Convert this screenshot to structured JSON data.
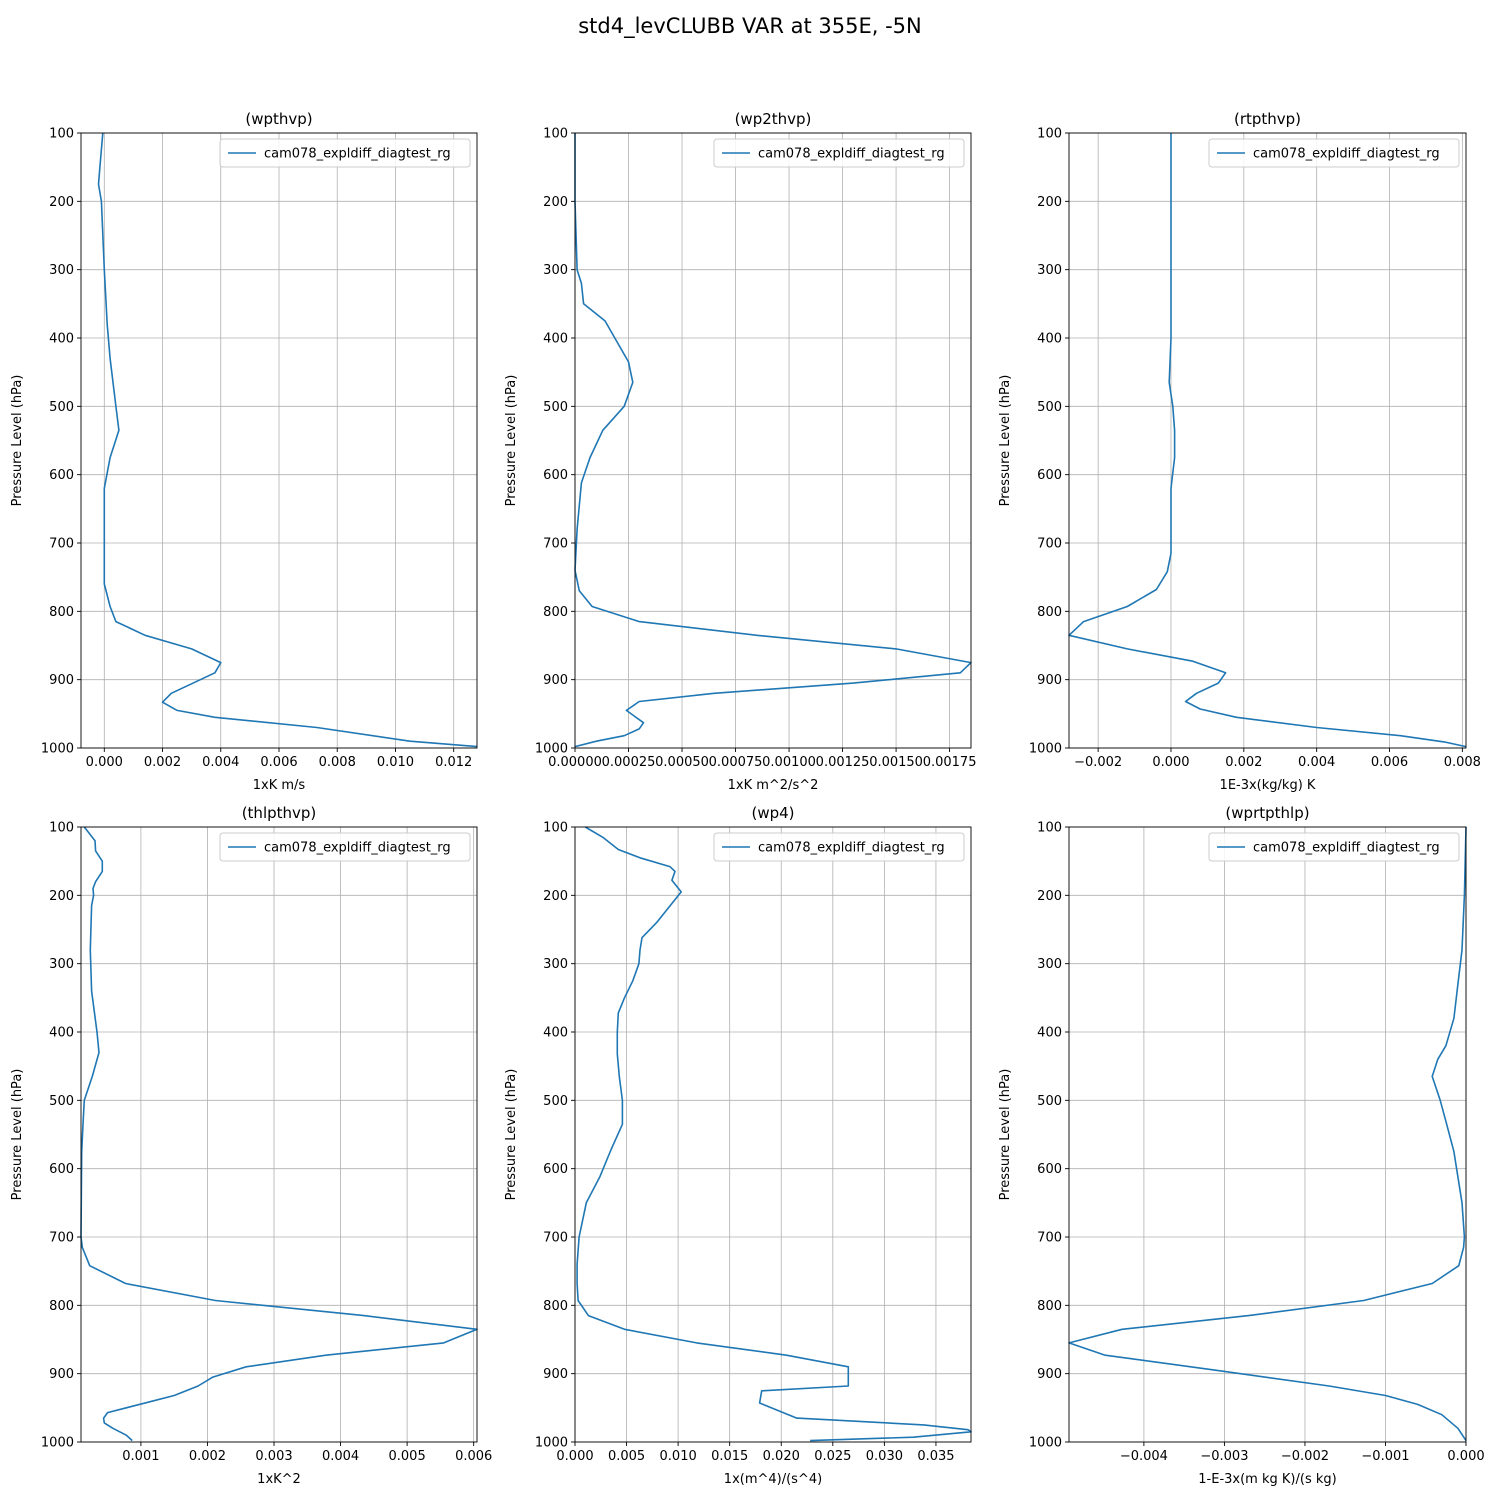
{
  "suptitle": "std4_levCLUBB VAR at 355E, -5N",
  "colors": {
    "series": "#1f77b4",
    "grid": "#b0b0b0",
    "axes": "#000000"
  },
  "chart_data": [
    {
      "type": "line",
      "title": "(wpthvp)",
      "xlabel": "1xK m/s",
      "ylabel": "Pressure Level (hPa)",
      "xlim": [
        -0.0008,
        0.0128
      ],
      "ylim": [
        1000,
        100
      ],
      "y_inverted": true,
      "grid": true,
      "legend": "upper right",
      "xticks": [
        0,
        0.002,
        0.004,
        0.006,
        0.008,
        0.01,
        0.012
      ],
      "xticklabels": [
        "0.000",
        "0.002",
        "0.004",
        "0.006",
        "0.008",
        "0.010",
        "0.012"
      ],
      "yticks": [
        100,
        200,
        300,
        400,
        500,
        600,
        700,
        800,
        900,
        1000
      ],
      "series": [
        {
          "name": "cam078_expldiff_diagtest_rg",
          "x": [
            -5e-05,
            -0.00015,
            -0.0002,
            -0.0001,
            0.0,
            0.0001,
            0.0002,
            0.0003,
            0.0004,
            0.0005,
            0.0002,
            0.0,
            0.0,
            0.0,
            0.0002,
            0.0004,
            0.0014,
            0.003,
            0.004,
            0.0038,
            0.0023,
            0.002,
            0.0025,
            0.0038,
            0.0073,
            0.0105,
            0.0128
          ],
          "y": [
            100,
            150,
            175,
            200,
            300,
            380,
            430,
            465,
            500,
            535,
            575,
            620,
            700,
            760,
            793,
            815,
            835,
            855,
            875,
            890,
            920,
            933,
            945,
            955,
            970,
            990,
            998
          ]
        }
      ]
    },
    {
      "type": "line",
      "title": "(wp2thvp)",
      "xlabel": "1xK m^2/s^2",
      "ylabel": "Pressure Level (hPa)",
      "xlim": [
        0,
        0.00185
      ],
      "ylim": [
        1000,
        100
      ],
      "y_inverted": true,
      "grid": true,
      "legend": "upper right",
      "xticks": [
        0,
        0.00025,
        0.0005,
        0.00075,
        0.001,
        0.00125,
        0.0015,
        0.00175
      ],
      "xticklabels": [
        "0.00000",
        "0.00025",
        "0.00050",
        "0.00075",
        "0.00100",
        "0.00125",
        "0.00150",
        "0.00175"
      ],
      "yticks": [
        100,
        200,
        300,
        400,
        500,
        600,
        700,
        800,
        900,
        1000
      ],
      "series": [
        {
          "name": "cam078_expldiff_diagtest_rg",
          "x": [
            0.0,
            0.0,
            1e-05,
            3e-05,
            4e-05,
            0.00014,
            0.00025,
            0.00027,
            0.00023,
            0.00013,
            7e-05,
            3e-05,
            1e-05,
            0.0,
            2e-05,
            8e-05,
            0.0003,
            0.00085,
            0.0015,
            0.00185,
            0.0018,
            0.0013,
            0.00065,
            0.0003,
            0.00024,
            0.00032,
            0.0003,
            0.00023,
            0.0001,
            0.0
          ],
          "y": [
            100,
            200,
            300,
            320,
            350,
            375,
            435,
            465,
            500,
            535,
            575,
            612,
            680,
            740,
            770,
            793,
            815,
            835,
            855,
            875,
            890,
            905,
            920,
            932,
            945,
            963,
            972,
            982,
            990,
            998
          ]
        }
      ]
    },
    {
      "type": "line",
      "title": "(rtpthvp)",
      "xlabel": "1E-3x(kg/kg) K",
      "ylabel": "Pressure Level (hPa)",
      "xlim": [
        -0.0028,
        0.0081
      ],
      "ylim": [
        1000,
        100
      ],
      "y_inverted": true,
      "grid": true,
      "legend": "upper right",
      "xticks": [
        -0.002,
        0,
        0.002,
        0.004,
        0.006,
        0.008
      ],
      "xticklabels": [
        "−0.002",
        "0.000",
        "0.002",
        "0.004",
        "0.006",
        "0.008"
      ],
      "yticks": [
        100,
        200,
        300,
        400,
        500,
        600,
        700,
        800,
        900,
        1000
      ],
      "series": [
        {
          "name": "cam078_expldiff_diagtest_rg",
          "x": [
            0.0,
            0.0,
            0.0,
            0.0,
            -5e-05,
            5e-05,
            0.0001,
            0.0001,
            0.0,
            0.0,
            -0.0001,
            -0.0004,
            -0.0012,
            -0.0024,
            -0.0028,
            -0.0012,
            0.0006,
            0.0015,
            0.0013,
            0.0007,
            0.0004,
            0.0008,
            0.0018,
            0.004,
            0.0063,
            0.0075,
            0.0081
          ],
          "y": [
            100,
            200,
            300,
            400,
            465,
            500,
            535,
            575,
            620,
            715,
            742,
            768,
            793,
            815,
            835,
            855,
            873,
            890,
            905,
            920,
            932,
            943,
            955,
            970,
            982,
            991,
            998
          ]
        }
      ]
    },
    {
      "type": "line",
      "title": "(thlpthvp)",
      "xlabel": "1xK^2",
      "ylabel": "Pressure Level (hPa)",
      "xlim": [
        0.0001,
        0.00605
      ],
      "ylim": [
        1000,
        100
      ],
      "y_inverted": true,
      "grid": true,
      "legend": "upper right",
      "xticks": [
        0.001,
        0.002,
        0.003,
        0.004,
        0.005,
        0.006
      ],
      "xticklabels": [
        "0.001",
        "0.002",
        "0.003",
        "0.004",
        "0.005",
        "0.006"
      ],
      "yticks": [
        100,
        200,
        300,
        400,
        500,
        600,
        700,
        800,
        900,
        1000
      ],
      "series": [
        {
          "name": "cam078_expldiff_diagtest_rg",
          "x": [
            0.00015,
            0.00031,
            0.00032,
            0.00042,
            0.00042,
            0.00032,
            0.00028,
            0.00029,
            0.00026,
            0.00025,
            0.00024,
            0.00026,
            0.00034,
            0.00037,
            0.00027,
            0.00015,
            0.00013,
            0.00011,
            0.0001,
            0.00012,
            0.00023,
            0.00077,
            0.00212,
            0.00435,
            0.00605,
            0.00555,
            0.00378,
            0.00258,
            0.00208,
            0.00186,
            0.0015,
            0.0005,
            0.00044,
            0.00045,
            0.00058,
            0.00078,
            0.00087
          ],
          "y": [
            100,
            120,
            135,
            150,
            165,
            180,
            190,
            200,
            215,
            245,
            280,
            340,
            400,
            430,
            465,
            500,
            535,
            575,
            700,
            715,
            742,
            768,
            793,
            815,
            835,
            855,
            873,
            890,
            905,
            918,
            932,
            957,
            965,
            972,
            980,
            990,
            998
          ]
        }
      ]
    },
    {
      "type": "line",
      "title": "(wp4)",
      "xlabel": "1x(m^4)/(s^4)",
      "ylabel": "Pressure Level (hPa)",
      "xlim": [
        0,
        0.0384
      ],
      "ylim": [
        1000,
        100
      ],
      "y_inverted": true,
      "grid": true,
      "legend": "upper right",
      "xticks": [
        0,
        0.005,
        0.01,
        0.015,
        0.02,
        0.025,
        0.03,
        0.035
      ],
      "xticklabels": [
        "0.000",
        "0.005",
        "0.010",
        "0.015",
        "0.020",
        "0.025",
        "0.030",
        "0.035"
      ],
      "yticks": [
        100,
        200,
        300,
        400,
        500,
        600,
        700,
        800,
        900,
        1000
      ],
      "series": [
        {
          "name": "cam078_expldiff_diagtest_rg",
          "x": [
            0.001,
            0.0027,
            0.0042,
            0.0063,
            0.0092,
            0.0097,
            0.0094,
            0.0103,
            0.0079,
            0.0065,
            0.0063,
            0.0062,
            0.0056,
            0.0048,
            0.0042,
            0.0041,
            0.0041,
            0.0043,
            0.0046,
            0.0046,
            0.0035,
            0.0024,
            0.0011,
            0.0004,
            0.0002,
            0.0002,
            0.0003,
            0.0013,
            0.0048,
            0.0118,
            0.0205,
            0.0265,
            0.0265,
            0.0181,
            0.0179,
            0.0215,
            0.0338,
            0.0381,
            0.0384,
            0.0328,
            0.0228
          ],
          "y": [
            100,
            115,
            133,
            145,
            158,
            165,
            178,
            195,
            240,
            262,
            280,
            300,
            325,
            350,
            372,
            400,
            432,
            465,
            500,
            535,
            572,
            612,
            650,
            700,
            740,
            768,
            793,
            815,
            835,
            855,
            873,
            890,
            918,
            925,
            943,
            965,
            975,
            982,
            985,
            993,
            998
          ]
        }
      ]
    },
    {
      "type": "line",
      "title": "(wprtpthlp)",
      "xlabel": "1-E-3x(m kg K)/(s kg)",
      "ylabel": "Pressure Level (hPa)",
      "xlim": [
        -0.00493,
        0.0
      ],
      "ylim": [
        1000,
        100
      ],
      "y_inverted": true,
      "grid": true,
      "legend": "upper right",
      "xticks": [
        -0.004,
        -0.003,
        -0.002,
        -0.001,
        0.0
      ],
      "xticklabels": [
        "−0.004",
        "−0.003",
        "−0.002",
        "−0.001",
        "0.000"
      ],
      "yticks": [
        100,
        200,
        300,
        400,
        500,
        600,
        700,
        800,
        900,
        1000
      ],
      "series": [
        {
          "name": "cam078_expldiff_diagtest_rg",
          "x": [
            0.0,
            -2e-05,
            -5e-05,
            -0.0001,
            -0.00015,
            -0.00025,
            -0.00035,
            -0.00042,
            -0.00032,
            -0.00024,
            -0.00015,
            -5e-05,
            -2e-05,
            -3e-05,
            -9e-05,
            -0.00042,
            -0.00127,
            -0.0027,
            -0.00427,
            -0.00493,
            -0.00448,
            -0.0031,
            -0.0017,
            -0.001,
            -0.0006,
            -0.0003,
            -0.0001,
            0.0
          ],
          "y": [
            100,
            200,
            280,
            330,
            380,
            420,
            440,
            465,
            500,
            535,
            575,
            650,
            700,
            715,
            742,
            768,
            793,
            815,
            835,
            855,
            873,
            895,
            918,
            932,
            945,
            960,
            980,
            998
          ]
        }
      ]
    }
  ]
}
